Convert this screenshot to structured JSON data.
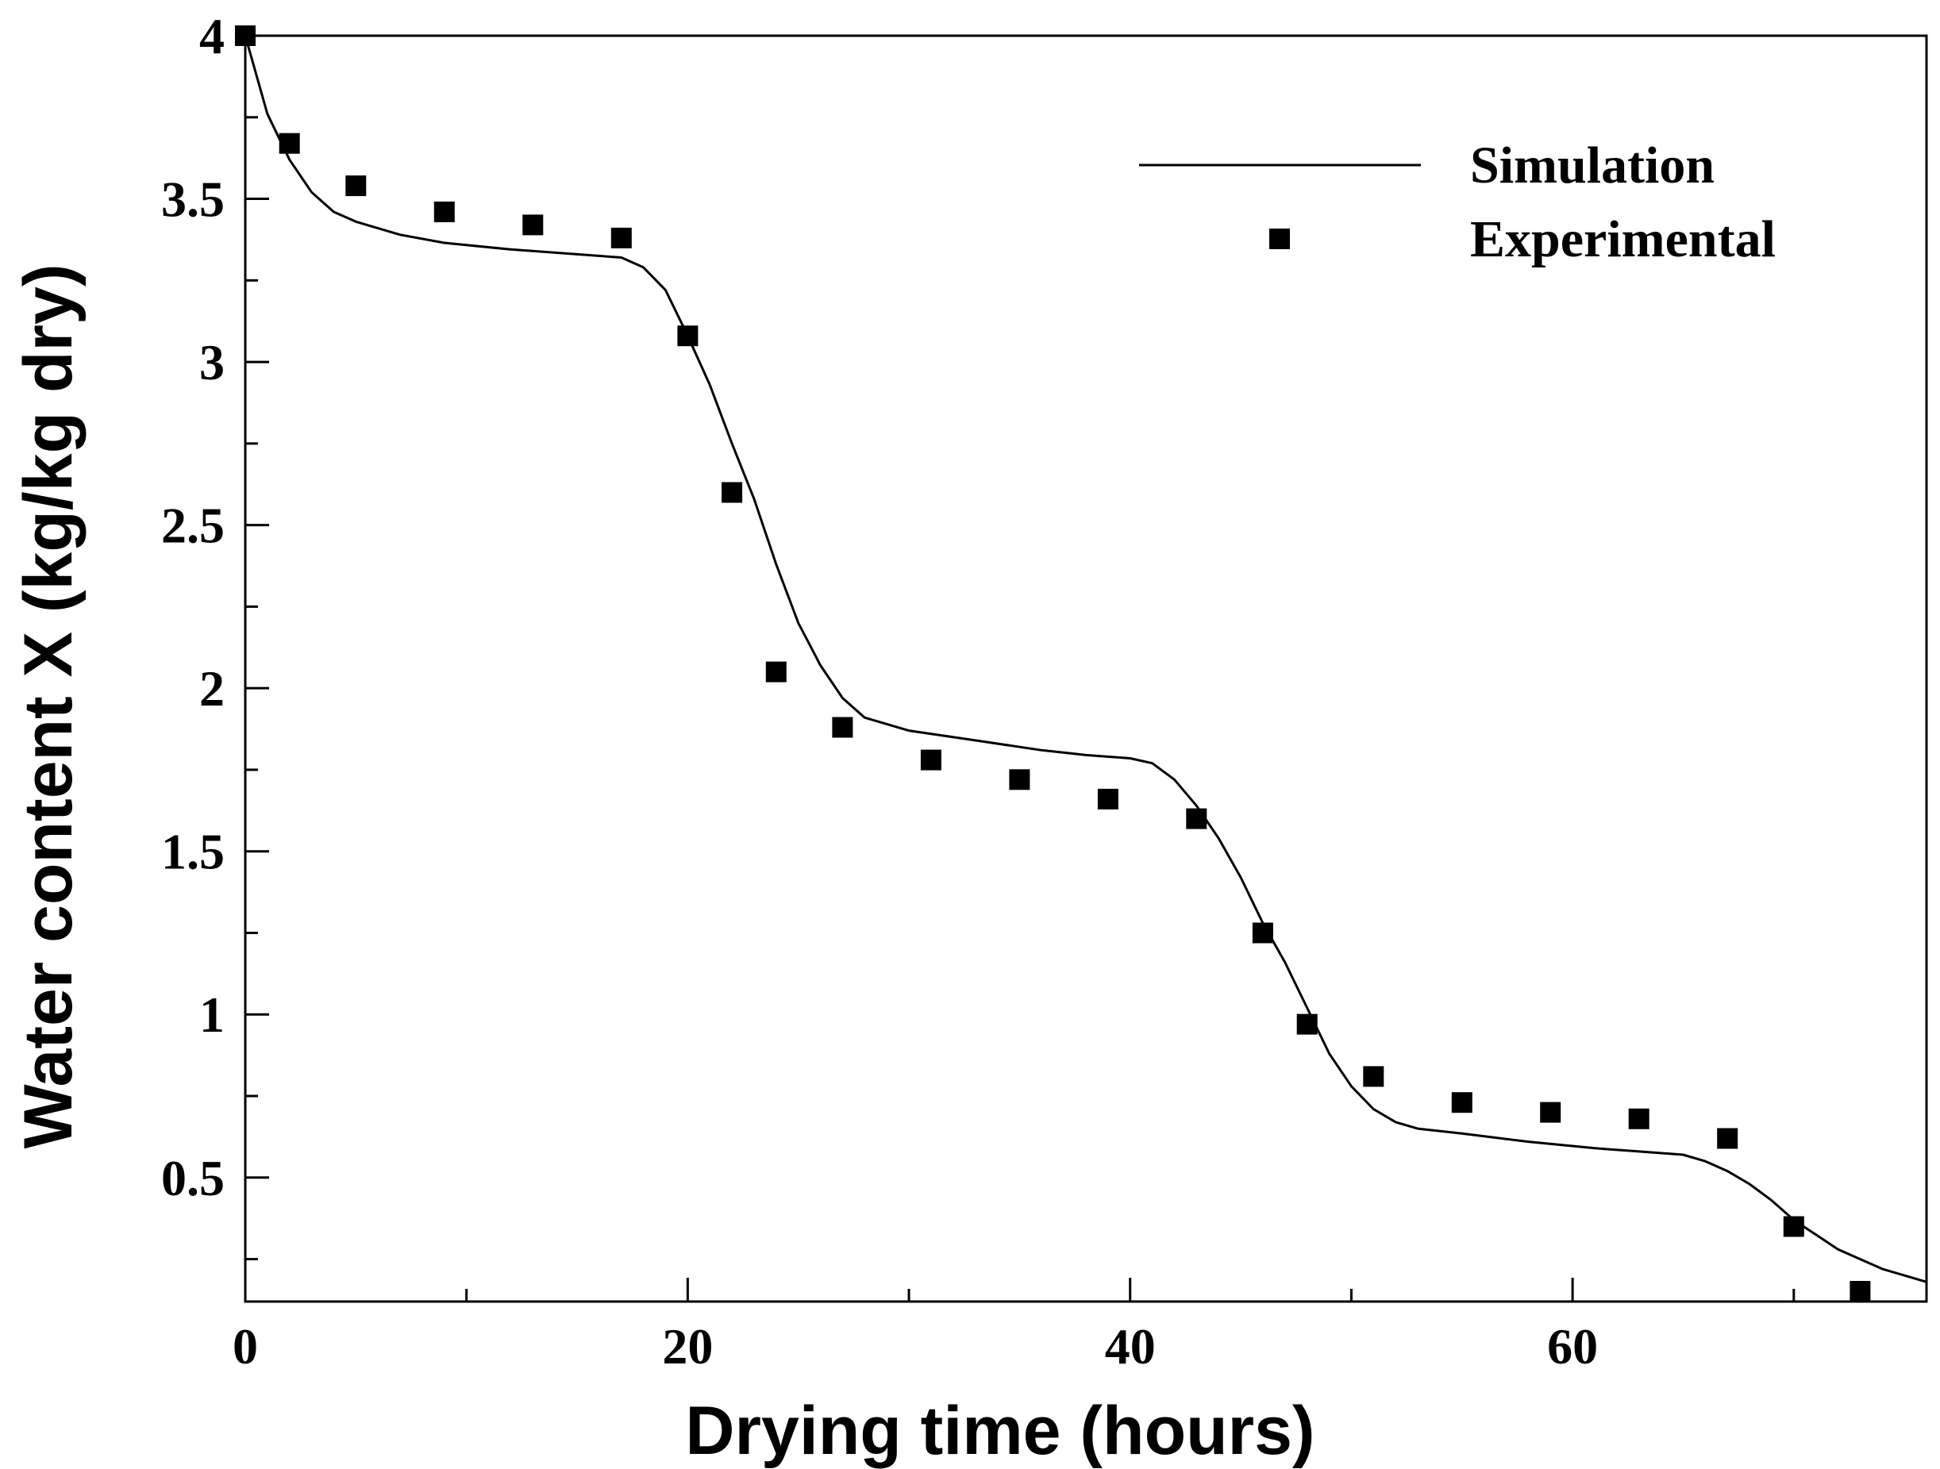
{
  "chart_data": {
    "type": "line",
    "title": "",
    "xlabel": "Drying time (hours)",
    "ylabel": "Water content X (kg/kg dry)",
    "xlim": [
      0,
      76
    ],
    "ylim": [
      0.12,
      4.0
    ],
    "x_ticks": [
      {
        "value": 0,
        "label": "0"
      },
      {
        "value": 20,
        "label": "20"
      },
      {
        "value": 40,
        "label": "40"
      },
      {
        "value": 60,
        "label": "60"
      }
    ],
    "x_minor_ticks": [
      10,
      30,
      50,
      70
    ],
    "y_ticks": [
      {
        "value": 0.5,
        "label": "0.5"
      },
      {
        "value": 1,
        "label": "1"
      },
      {
        "value": 1.5,
        "label": "1.5"
      },
      {
        "value": 2,
        "label": "2"
      },
      {
        "value": 2.5,
        "label": "2.5"
      },
      {
        "value": 3,
        "label": "3"
      },
      {
        "value": 3.5,
        "label": "3.5"
      },
      {
        "value": 4,
        "label": "4"
      }
    ],
    "y_minor_ticks": [
      0.25,
      0.75,
      1.25,
      1.75,
      2.25,
      2.75,
      3.25,
      3.75
    ],
    "grid": false,
    "legend": {
      "position": "top-right"
    },
    "colors": {
      "line": "#000000",
      "marker": "#000000",
      "axis": "#000000"
    },
    "series": [
      {
        "name": "Simulation",
        "style": "line",
        "x": [
          0,
          1,
          2,
          3,
          4,
          5,
          7,
          9,
          12,
          15,
          17,
          18,
          19,
          20,
          21,
          22,
          23,
          24,
          25,
          26,
          27,
          28,
          30,
          33,
          36,
          38,
          40,
          41,
          42,
          43,
          44,
          45,
          46,
          47,
          48,
          49,
          50,
          51,
          52,
          53,
          55,
          58,
          61,
          63,
          65,
          66,
          67,
          68,
          69,
          70,
          72,
          74,
          76
        ],
        "y": [
          4.0,
          3.76,
          3.62,
          3.52,
          3.46,
          3.43,
          3.39,
          3.365,
          3.345,
          3.33,
          3.32,
          3.29,
          3.22,
          3.08,
          2.93,
          2.75,
          2.58,
          2.38,
          2.2,
          2.07,
          1.97,
          1.91,
          1.87,
          1.84,
          1.81,
          1.795,
          1.785,
          1.77,
          1.72,
          1.64,
          1.54,
          1.42,
          1.28,
          1.16,
          1.02,
          0.88,
          0.78,
          0.71,
          0.67,
          0.65,
          0.635,
          0.61,
          0.59,
          0.58,
          0.57,
          0.55,
          0.52,
          0.48,
          0.43,
          0.37,
          0.28,
          0.22,
          0.18
        ]
      },
      {
        "name": "Experimental",
        "style": "marker",
        "x": [
          0,
          2,
          5,
          9,
          13,
          17,
          20,
          22,
          24,
          27,
          31,
          35,
          39,
          43,
          46,
          48,
          51,
          55,
          59,
          63,
          67,
          70,
          73
        ],
        "y": [
          4.0,
          3.67,
          3.54,
          3.46,
          3.42,
          3.38,
          3.08,
          2.6,
          2.05,
          1.88,
          1.78,
          1.72,
          1.66,
          1.6,
          1.25,
          0.97,
          0.81,
          0.73,
          0.7,
          0.68,
          0.62,
          0.35,
          0.12
        ]
      }
    ]
  }
}
